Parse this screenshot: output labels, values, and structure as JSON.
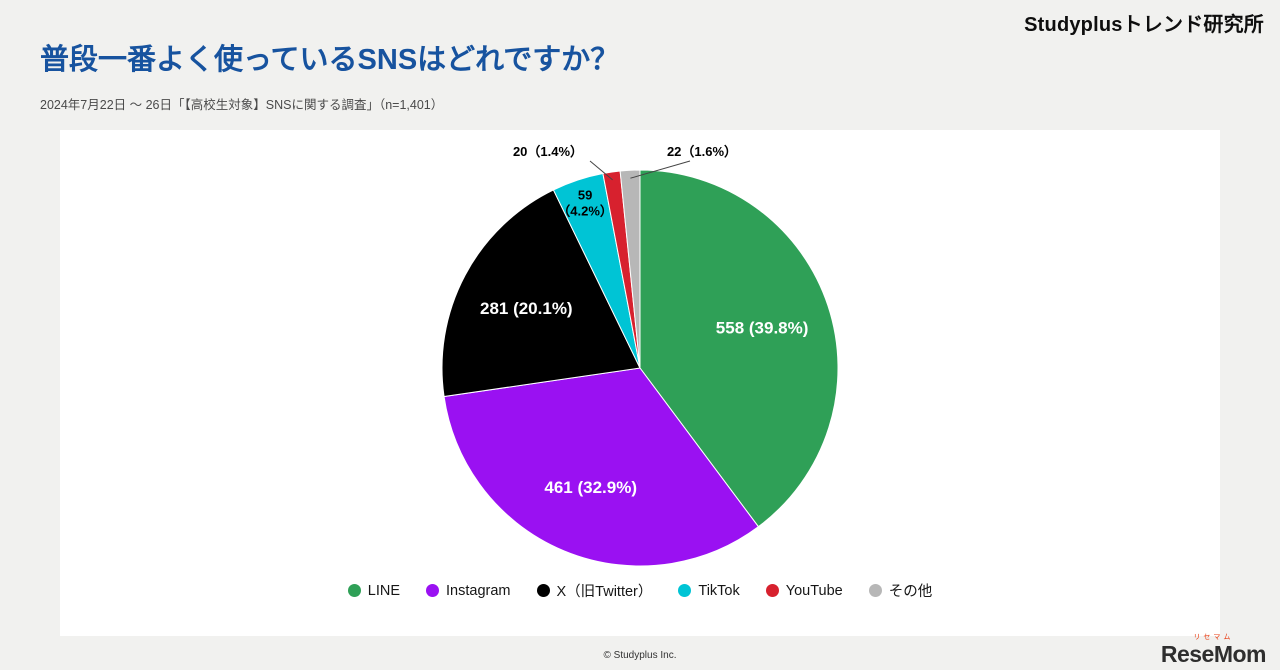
{
  "brand": {
    "name": "Studyplusトレンド研究所"
  },
  "page": {
    "title": "普段一番よく使っているSNSはどれですか？",
    "subtitle": "2024年7月22日 ～ 26日「【高校生対象】SNSに関する調査」（n=1,401）"
  },
  "footer": {
    "copyright": "© Studyplus Inc."
  },
  "watermark": {
    "furigana": "リセマム",
    "name": "ReseMom"
  },
  "chart_data": {
    "type": "pie",
    "title": "普段一番よく使っているSNSはどれですか？",
    "sample_size": "n=1,401",
    "total": 1401,
    "start_angle_deg": 0,
    "direction": "clockwise",
    "legend_position": "bottom",
    "segments": [
      {
        "label": "LINE",
        "value": 558,
        "pct": 39.8,
        "color": "#2fa057",
        "display_lines": [
          "558 (39.8%)"
        ],
        "label_mode": "inside"
      },
      {
        "label": "Instagram",
        "value": 461,
        "pct": 32.9,
        "color": "#9a11f2",
        "display_lines": [
          "461 (32.9%)"
        ],
        "label_mode": "inside"
      },
      {
        "label": "X（旧Twitter）",
        "value": 281,
        "pct": 20.1,
        "color": "#000000",
        "display_lines": [
          "281 (20.1%)"
        ],
        "label_mode": "inside"
      },
      {
        "label": "TikTok",
        "value": 59,
        "pct": 4.2,
        "color": "#00c4d5",
        "display_lines": [
          "59",
          "（4.2%）"
        ],
        "label_mode": "edge"
      },
      {
        "label": "YouTube",
        "value": 20,
        "pct": 1.4,
        "color": "#d7212e",
        "display_lines": [
          "20（1.4%）"
        ],
        "label_mode": "callout-left"
      },
      {
        "label": "その他",
        "value": 22,
        "pct": 1.6,
        "color": "#b7b7b7",
        "display_lines": [
          "22（1.6%）"
        ],
        "label_mode": "callout-right"
      }
    ]
  }
}
